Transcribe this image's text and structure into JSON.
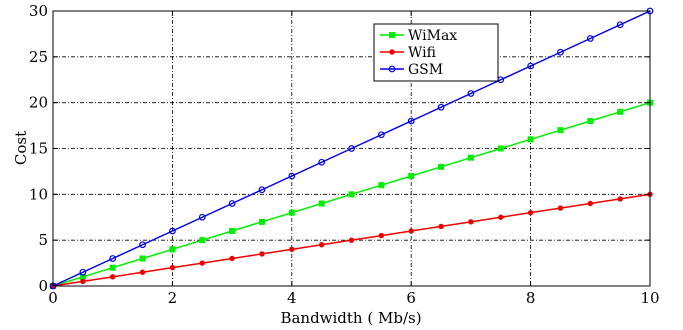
{
  "chart_data": {
    "type": "line",
    "xlabel": "Bandwidth ( Mb/s)",
    "ylabel": "Cost",
    "xlim": [
      0,
      10
    ],
    "ylim": [
      0,
      30
    ],
    "xticks": [
      "0",
      "2",
      "4",
      "6",
      "8",
      "10"
    ],
    "yticks": [
      "0",
      "5",
      "10",
      "15",
      "20",
      "25",
      "30"
    ],
    "grid": true,
    "legend_position": "top-center",
    "x": [
      0,
      0.5,
      1,
      1.5,
      2,
      2.5,
      3,
      3.5,
      4,
      4.5,
      5,
      5.5,
      6,
      6.5,
      7,
      7.5,
      8,
      8.5,
      9,
      9.5,
      10
    ],
    "series": [
      {
        "name": "WiMax",
        "color": "#00ee00",
        "marker": "square",
        "values": [
          0,
          1,
          2,
          3,
          4,
          5,
          6,
          7,
          8,
          9,
          10,
          11,
          12,
          13,
          14,
          15,
          16,
          17,
          18,
          19,
          20
        ]
      },
      {
        "name": "Wifi",
        "color": "#ee0000",
        "marker": "dot",
        "values": [
          0,
          0.5,
          1,
          1.5,
          2,
          2.5,
          3,
          3.5,
          4,
          4.5,
          5,
          5.5,
          6,
          6.5,
          7,
          7.5,
          8,
          8.5,
          9,
          9.5,
          10
        ]
      },
      {
        "name": "GSM",
        "color": "#0000ee",
        "marker": "circle",
        "values": [
          0,
          1.5,
          3,
          4.5,
          6,
          7.5,
          9,
          10.5,
          12,
          13.5,
          15,
          16.5,
          18,
          19.5,
          21,
          22.5,
          24,
          25.5,
          27,
          28.5,
          30
        ]
      }
    ]
  }
}
